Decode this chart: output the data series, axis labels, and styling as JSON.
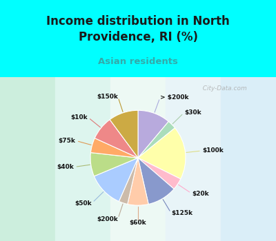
{
  "title": "Income distribution in North\nProvidence, RI (%)",
  "subtitle": "Asian residents",
  "title_color": "#1a1a1a",
  "subtitle_color": "#33aaaa",
  "bg_top": "#00ffff",
  "bg_chart_colors": [
    "#c8ead8",
    "#dff0e8",
    "#f0f8f0",
    "#e8f4f8",
    "#d0eaf4"
  ],
  "watermark": "  City-Data.com",
  "labels": [
    "> $200k",
    "$30k",
    "$100k",
    "$20k",
    "$125k",
    "$60k",
    "$200k",
    "$50k",
    "$40k",
    "$75k",
    "$10k",
    "$150k"
  ],
  "values": [
    11,
    3,
    18,
    4,
    10,
    7,
    3,
    12,
    8,
    5,
    8,
    10
  ],
  "colors": [
    "#b8aadd",
    "#aaddbb",
    "#ffffaa",
    "#ffbbcc",
    "#8899cc",
    "#ffccaa",
    "#ccbbaa",
    "#aaccff",
    "#bbdd88",
    "#ffaa66",
    "#ee8888",
    "#ccaa44"
  ],
  "line_colors": [
    "#aaaadd",
    "#aaccaa",
    "#dddd88",
    "#ffaacc",
    "#7788bb",
    "#ddaa88",
    "#bbaa99",
    "#99bbdd",
    "#aabb77",
    "#dd9955",
    "#dd7777",
    "#bb9933"
  ]
}
